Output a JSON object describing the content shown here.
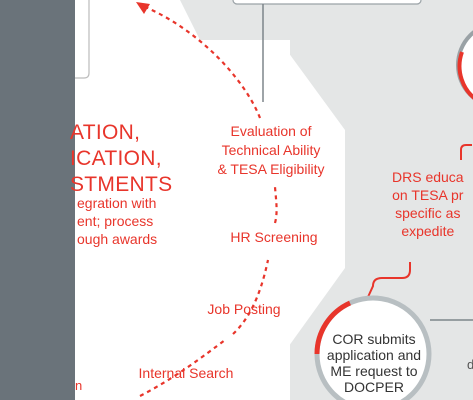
{
  "center_steps": {
    "evaluation": [
      "Evaluation of",
      "Technical Ability",
      "& TESA Eligibility"
    ],
    "hr_screening": "HR Screening",
    "job_posting": "Job Posting",
    "internal_search": "Internal Search"
  },
  "left_panel": {
    "heading_lines": [
      "ATION,",
      "ICATION,",
      "STMENTS"
    ],
    "description_lines": [
      "egration with",
      "ent; process",
      "ough awards"
    ]
  },
  "right_panel": {
    "drs_lines": [
      "DRS educa",
      "on TESA pr",
      "specific as",
      "expedite"
    ],
    "cor_lines": [
      "COR submits",
      "application and",
      "ME request to",
      "DOCPER"
    ],
    "fragment_text": "d"
  },
  "bottom_left_fragment": "n",
  "colors": {
    "accent_red": "#e8352b",
    "sidebar_gray": "#6a737a",
    "background_gray": "#e4e6e6",
    "circle_ring_gray": "#9aa2a6",
    "text_dark": "#333333"
  }
}
